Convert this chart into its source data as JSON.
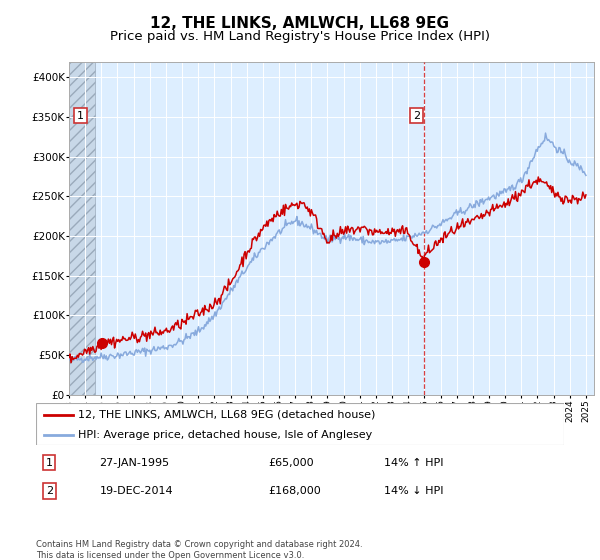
{
  "title": "12, THE LINKS, AMLWCH, LL68 9EG",
  "subtitle": "Price paid vs. HM Land Registry's House Price Index (HPI)",
  "legend_line1": "12, THE LINKS, AMLWCH, LL68 9EG (detached house)",
  "legend_line2": "HPI: Average price, detached house, Isle of Anglesey",
  "sale1_date": "27-JAN-1995",
  "sale1_price": "£65,000",
  "sale1_hpi": "14% ↑ HPI",
  "sale1_year": 1995.07,
  "sale1_value": 65000,
  "sale2_date": "19-DEC-2014",
  "sale2_price": "£168,000",
  "sale2_hpi": "14% ↓ HPI",
  "sale2_year": 2014.97,
  "sale2_value": 168000,
  "xmin": 1993,
  "xmax": 2025.5,
  "ymin": 0,
  "ymax": 420000,
  "hatch_xmax": 1994.6,
  "vline_x": 2014.97,
  "red_color": "#cc0000",
  "blue_color": "#88aadd",
  "background_color": "#ddeeff",
  "title_fontsize": 11,
  "subtitle_fontsize": 9.5,
  "footnote": "Contains HM Land Registry data © Crown copyright and database right 2024.\nThis data is licensed under the Open Government Licence v3.0."
}
